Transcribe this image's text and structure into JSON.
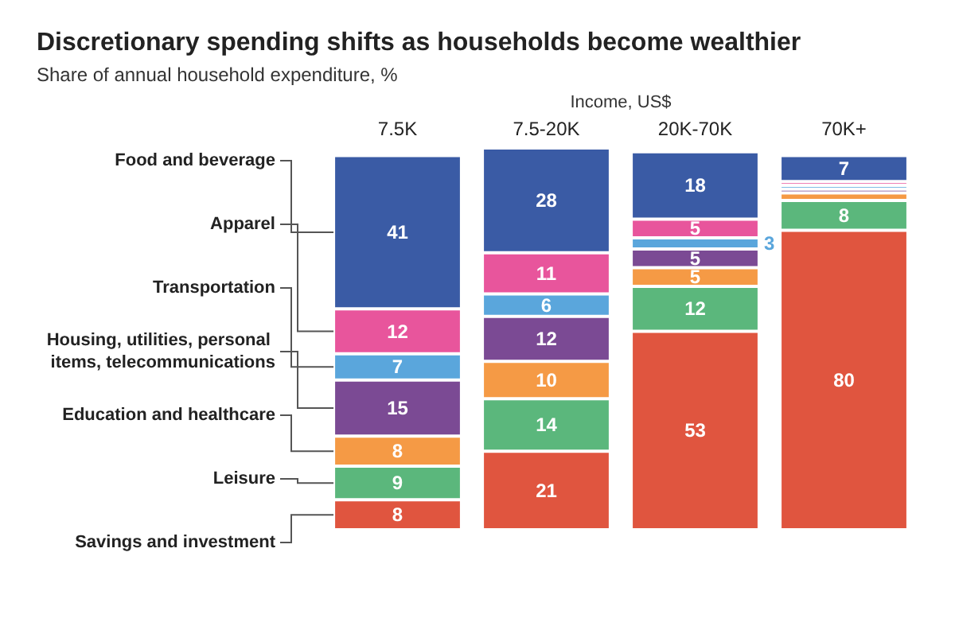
{
  "chart_data": {
    "type": "bar",
    "stacked": true,
    "title": "Discretionary spending shifts as households become wealthier",
    "subtitle": "Share of annual household expenditure, %",
    "xlabel": "Income, US$",
    "categories": [
      "7.5K",
      "7.5-20K",
      "20K-70K",
      "70K+"
    ],
    "legend": "left",
    "series": [
      {
        "name": "Savings and investment",
        "color": "#e0553f",
        "values": [
          8,
          21,
          53,
          80
        ],
        "value_labels": [
          "8",
          "21",
          "53",
          "80"
        ]
      },
      {
        "name": "Leisure",
        "color": "#5bb77c",
        "values": [
          9,
          14,
          12,
          8
        ],
        "value_labels": [
          "9",
          "14",
          "12",
          "8"
        ]
      },
      {
        "name": "Education and healthcare",
        "color": "#f59a45",
        "values": [
          8,
          10,
          5,
          2
        ],
        "value_labels": [
          "8",
          "10",
          "5",
          null
        ]
      },
      {
        "name": "Housing, utilities, personal items, telecommunications",
        "color": "#7b4a94",
        "values": [
          15,
          12,
          5,
          1
        ],
        "value_labels": [
          "15",
          "12",
          "5",
          null
        ]
      },
      {
        "name": "Transportation",
        "color": "#5aa6dc",
        "values": [
          7,
          6,
          3,
          1
        ],
        "value_labels": [
          "7",
          "6",
          "3",
          null
        ]
      },
      {
        "name": "Apparel",
        "color": "#e8559c",
        "values": [
          12,
          11,
          5,
          1
        ],
        "value_labels": [
          "12",
          "11",
          "5",
          null
        ]
      },
      {
        "name": "Food and beverage",
        "color": "#3a5ba5",
        "values": [
          41,
          28,
          18,
          7
        ],
        "value_labels": [
          "41",
          "28",
          "18",
          "7"
        ]
      }
    ]
  }
}
